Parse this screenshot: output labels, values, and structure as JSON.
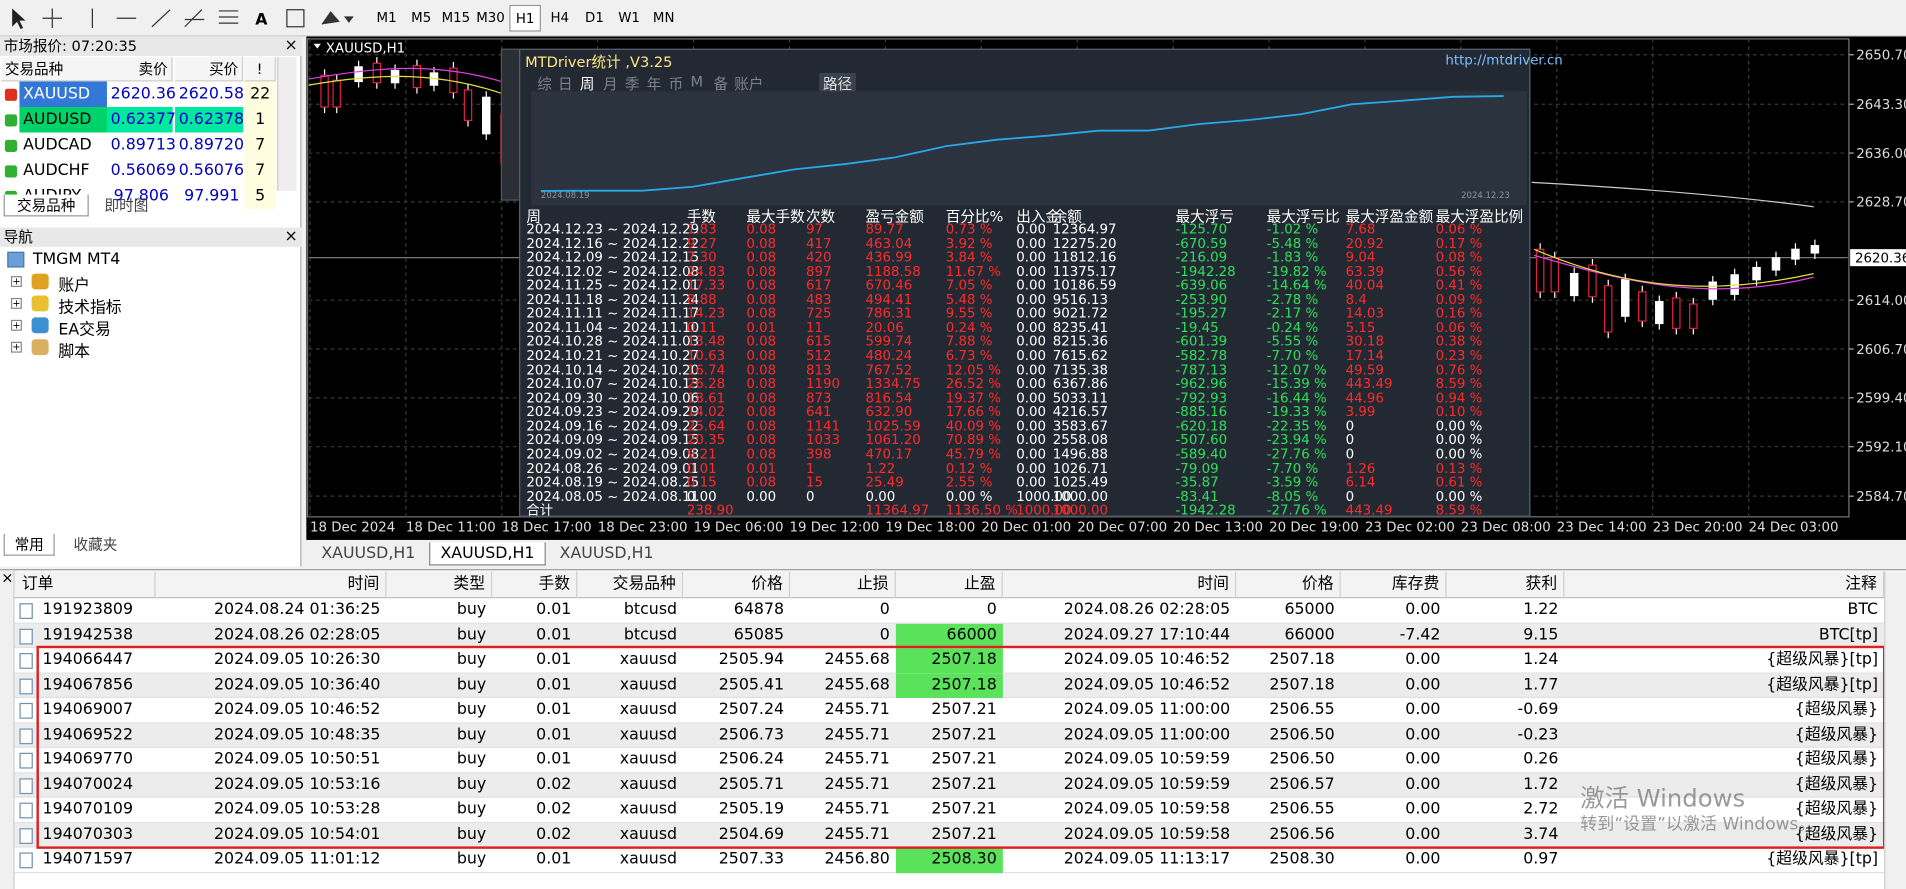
{
  "toolbar": {
    "timeframes": [
      "M1",
      "M5",
      "M15",
      "M30",
      "H1",
      "H4",
      "D1",
      "W1",
      "MN"
    ]
  },
  "market_watch": {
    "title": "市场报价: 07:20:35",
    "columns": [
      "交易品种",
      "卖价",
      "买价",
      "!"
    ],
    "rows": [
      [
        "XAUUSD",
        "2620.36",
        "2620.58",
        "22"
      ],
      [
        "AUDUSD",
        "0.62377",
        "0.62378",
        "1"
      ],
      [
        "AUDCAD",
        "0.89713",
        "0.89720",
        "7"
      ],
      [
        "AUDCHF",
        "0.56069",
        "0.56076",
        "7"
      ],
      [
        "AUDJPY",
        "97.806",
        "97.991",
        "5"
      ]
    ],
    "tabs": [
      "交易品种",
      "即时图"
    ]
  },
  "navigator": {
    "title": "导航",
    "root": "TMGM MT4",
    "items": [
      "账户",
      "技术指标",
      "EA交易",
      "脚本"
    ],
    "tabs": [
      "常用",
      "收藏夹"
    ]
  },
  "chart": {
    "title": "XAUUSD,H1",
    "price_labels": [
      "2650.70",
      "2643.30",
      "2636.00",
      "2628.70",
      "2614.00",
      "2606.70",
      "2599.40",
      "2592.10",
      "2584.70"
    ],
    "current_price": "2620.36",
    "time_labels": [
      "18 Dec 2024",
      "18 Dec 11:00",
      "18 Dec 17:00",
      "18 Dec 23:00",
      "19 Dec 06:00",
      "19 Dec 12:00",
      "19 Dec 18:00",
      "20 Dec 01:00",
      "20 Dec 07:00",
      "20 Dec 13:00",
      "20 Dec 19:00",
      "23 Dec 02:00",
      "23 Dec 08:00",
      "23 Dec 14:00",
      "23 Dec 20:00",
      "24 Dec 03:00"
    ],
    "tabs": [
      "XAUUSD,H1",
      "XAUUSD,H1",
      "XAUUSD,H1"
    ]
  },
  "stats_panel": {
    "title": "MTDriver统计 ,V3.25",
    "url": "http://mtdriver.cn",
    "tabs": [
      "综",
      "日",
      "周",
      "月",
      "季",
      "年",
      "币",
      "M",
      "备",
      "账户"
    ],
    "path_button": "路径",
    "curve_start": "2024.08.19",
    "curve_end": "2024.12.23",
    "columns": [
      "周",
      "手数",
      "最大手数",
      "次数",
      "盈亏金额",
      "百分比%",
      "出入金",
      "余额",
      "最大浮亏",
      "最大浮亏比",
      "最大浮盈金额",
      "最大浮盈比例"
    ],
    "rows": [
      [
        "2024.12.23 ~ 2024.12.29",
        "1.83",
        "0.08",
        "97",
        "89.77",
        "0.73 %",
        "0.00",
        "12364.97",
        "-125.70",
        "-1.02 %",
        "7.68",
        "0.06 %"
      ],
      [
        "2024.12.16 ~ 2024.12.22",
        "9.27",
        "0.08",
        "417",
        "463.04",
        "3.92 %",
        "0.00",
        "12275.20",
        "-670.59",
        "-5.48 %",
        "20.92",
        "0.17 %"
      ],
      [
        "2024.12.09 ~ 2024.12.15",
        "7.30",
        "0.08",
        "420",
        "436.99",
        "3.84 %",
        "0.00",
        "11812.16",
        "-216.09",
        "-1.83 %",
        "9.04",
        "0.08 %"
      ],
      [
        "2024.12.02 ~ 2024.12.08",
        "24.83",
        "0.08",
        "897",
        "1188.58",
        "11.67 %",
        "0.00",
        "11375.17",
        "-1942.28",
        "-19.82 %",
        "63.39",
        "0.56 %"
      ],
      [
        "2024.11.25 ~ 2024.12.01",
        "17.33",
        "0.08",
        "617",
        "670.46",
        "7.05 %",
        "0.00",
        "10186.59",
        "-639.06",
        "-14.64 %",
        "40.04",
        "0.41 %"
      ],
      [
        "2024.11.18 ~ 2024.11.24",
        "8.88",
        "0.08",
        "483",
        "494.41",
        "5.48 %",
        "0.00",
        "9516.13",
        "-253.90",
        "-2.78 %",
        "8.4",
        "0.09 %"
      ],
      [
        "2024.11.11 ~ 2024.11.17",
        "14.23",
        "0.08",
        "725",
        "786.31",
        "9.55 %",
        "0.00",
        "9021.72",
        "-195.27",
        "-2.17 %",
        "14.03",
        "0.16 %"
      ],
      [
        "2024.11.04 ~ 2024.11.10",
        "0.11",
        "0.01",
        "11",
        "20.06",
        "0.24 %",
        "0.00",
        "8235.41",
        "-19.45",
        "-0.24 %",
        "5.15",
        "0.06 %"
      ],
      [
        "2024.10.28 ~ 2024.11.03",
        "13.48",
        "0.08",
        "615",
        "599.74",
        "7.88 %",
        "0.00",
        "8215.36",
        "-601.39",
        "-5.55 %",
        "30.18",
        "0.38 %"
      ],
      [
        "2024.10.21 ~ 2024.10.27",
        "10.63",
        "0.08",
        "512",
        "480.24",
        "6.73 %",
        "0.00",
        "7615.62",
        "-582.78",
        "-7.70 %",
        "17.14",
        "0.23 %"
      ],
      [
        "2024.10.14 ~ 2024.10.20",
        "16.74",
        "0.08",
        "813",
        "767.52",
        "12.05 %",
        "0.00",
        "7135.38",
        "-787.13",
        "-12.07 %",
        "49.59",
        "0.76 %"
      ],
      [
        "2024.10.07 ~ 2024.10.13",
        "26.28",
        "0.08",
        "1190",
        "1334.75",
        "26.52 %",
        "0.00",
        "6367.86",
        "-962.96",
        "-15.39 %",
        "443.49",
        "8.59 %"
      ],
      [
        "2024.09.30 ~ 2024.10.06",
        "18.61",
        "0.08",
        "873",
        "816.54",
        "19.37 %",
        "0.00",
        "5033.11",
        "-792.93",
        "-16.44 %",
        "44.96",
        "0.94 %"
      ],
      [
        "2024.09.23 ~ 2024.09.29",
        "14.02",
        "0.08",
        "641",
        "632.90",
        "17.66 %",
        "0.00",
        "4216.57",
        "-885.16",
        "-19.33 %",
        "3.99",
        "0.10 %"
      ],
      [
        "2024.09.16 ~ 2024.09.22",
        "25.64",
        "0.08",
        "1141",
        "1025.59",
        "40.09 %",
        "0.00",
        "3583.67",
        "-620.18",
        "-22.35 %",
        "0",
        "0.00 %"
      ],
      [
        "2024.09.09 ~ 2024.09.15",
        "20.35",
        "0.08",
        "1033",
        "1061.20",
        "70.89 %",
        "0.00",
        "2558.08",
        "-507.60",
        "-23.94 %",
        "0",
        "0.00 %"
      ],
      [
        "2024.09.02 ~ 2024.09.08",
        "9.21",
        "0.08",
        "398",
        "470.17",
        "45.79 %",
        "0.00",
        "1496.88",
        "-589.40",
        "-27.76 %",
        "0",
        "0.00 %"
      ],
      [
        "2024.08.26 ~ 2024.09.01",
        "0.01",
        "0.01",
        "1",
        "1.22",
        "0.12 %",
        "0.00",
        "1026.71",
        "-79.09",
        "-7.70 %",
        "1.26",
        "0.13 %"
      ],
      [
        "2024.08.19 ~ 2024.08.25",
        "0.15",
        "0.08",
        "15",
        "25.49",
        "2.55 %",
        "0.00",
        "1025.49",
        "-35.87",
        "-3.59 %",
        "6.14",
        "0.61 %"
      ],
      [
        "2024.08.05 ~ 2024.08.11",
        "0.00",
        "0.00",
        "0",
        "0.00",
        "0.00 %",
        "1000.00",
        "1000.00",
        "-83.41",
        "-8.05 %",
        "0",
        "0.00 %"
      ]
    ],
    "total": [
      "合计",
      "238.90",
      null,
      null,
      "11364.97",
      "1136.50 %",
      "1000.00",
      "1000.00",
      "-1942.28",
      "-27.76 %",
      "443.49",
      "8.59 %"
    ]
  },
  "orders": {
    "columns": [
      "订单",
      "时间",
      "类型",
      "手数",
      "交易品种",
      "价格",
      "止损",
      "止盈",
      "时间",
      "价格",
      "库存费",
      "获利",
      "注释"
    ],
    "rows": [
      [
        "191923809",
        "2024.08.24 01:36:25",
        "buy",
        "0.01",
        "btcusd",
        "64878",
        "0",
        "0",
        "2024.08.26 02:28:05",
        "65000",
        "0.00",
        "1.22",
        "BTC"
      ],
      [
        "191942538",
        "2024.08.26 02:28:05",
        "buy",
        "0.01",
        "btcusd",
        "65085",
        "0",
        "66000",
        "2024.09.27 17:10:44",
        "66000",
        "-7.42",
        "9.15",
        "BTC[tp]"
      ],
      [
        "194066447",
        "2024.09.05 10:26:30",
        "buy",
        "0.01",
        "xauusd",
        "2505.94",
        "2455.68",
        "2507.18",
        "2024.09.05 10:46:52",
        "2507.18",
        "0.00",
        "1.24",
        "{超级风暴}[tp]"
      ],
      [
        "194067856",
        "2024.09.05 10:36:40",
        "buy",
        "0.01",
        "xauusd",
        "2505.41",
        "2455.68",
        "2507.18",
        "2024.09.05 10:46:52",
        "2507.18",
        "0.00",
        "1.77",
        "{超级风暴}[tp]"
      ],
      [
        "194069007",
        "2024.09.05 10:46:52",
        "buy",
        "0.01",
        "xauusd",
        "2507.24",
        "2455.71",
        "2507.21",
        "2024.09.05 11:00:00",
        "2506.55",
        "0.00",
        "-0.69",
        "{超级风暴}"
      ],
      [
        "194069522",
        "2024.09.05 10:48:35",
        "buy",
        "0.01",
        "xauusd",
        "2506.73",
        "2455.71",
        "2507.21",
        "2024.09.05 11:00:00",
        "2506.50",
        "0.00",
        "-0.23",
        "{超级风暴}"
      ],
      [
        "194069770",
        "2024.09.05 10:50:51",
        "buy",
        "0.01",
        "xauusd",
        "2506.24",
        "2455.71",
        "2507.21",
        "2024.09.05 10:59:59",
        "2506.50",
        "0.00",
        "0.26",
        "{超级风暴}"
      ],
      [
        "194070024",
        "2024.09.05 10:53:16",
        "buy",
        "0.02",
        "xauusd",
        "2505.71",
        "2455.71",
        "2507.21",
        "2024.09.05 10:59:59",
        "2506.57",
        "0.00",
        "1.72",
        "{超级风暴}"
      ],
      [
        "194070109",
        "2024.09.05 10:53:28",
        "buy",
        "0.02",
        "xauusd",
        "2505.19",
        "2455.71",
        "2507.21",
        "2024.09.05 10:59:58",
        "2506.55",
        "0.00",
        "2.72",
        "{超级风暴}"
      ],
      [
        "194070303",
        "2024.09.05 10:54:01",
        "buy",
        "0.02",
        "xauusd",
        "2504.69",
        "2455.71",
        "2507.21",
        "2024.09.05 10:59:58",
        "2506.56",
        "0.00",
        "3.74",
        "{超级风暴}"
      ],
      [
        "194071597",
        "2024.09.05 11:01:12",
        "buy",
        "0.01",
        "xauusd",
        "2507.33",
        "2456.80",
        "2508.30",
        "2024.09.05 11:13:17",
        "2508.30",
        "0.00",
        "0.97",
        "{超级风暴}[tp]"
      ]
    ]
  },
  "watermark": {
    "title": "激活 Windows",
    "subtitle": "转到“设置”以激活 Windows。"
  }
}
